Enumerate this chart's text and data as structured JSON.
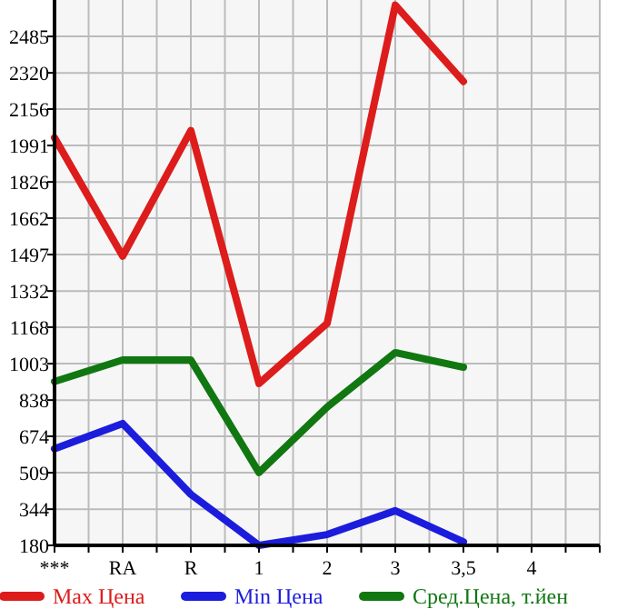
{
  "chart_data": {
    "type": "line",
    "categories": [
      "***",
      "RA",
      "R",
      "1",
      "2",
      "3",
      "3,5",
      "4"
    ],
    "series": [
      {
        "name": "Max Цена",
        "color": "#dd1c1c",
        "values": [
          2026,
          1490,
          2059,
          913,
          1185,
          2627,
          2281,
          null
        ]
      },
      {
        "name": "Min Цена",
        "color": "#1c1cdd",
        "values": [
          617,
          732,
          411,
          180,
          229,
          337,
          196,
          null
        ]
      },
      {
        "name": "Сред.Цена, т.йен",
        "color": "#117711",
        "values": [
          922,
          1020,
          1020,
          510,
          806,
          1053,
          987,
          null
        ]
      }
    ],
    "ylim": [
      180,
      2650
    ],
    "yticks": [
      180,
      344,
      509,
      674,
      838,
      1003,
      1168,
      1332,
      1497,
      1662,
      1826,
      1991,
      2156,
      2320,
      2485
    ],
    "grid": true,
    "legend": "bottom",
    "marker": "none",
    "line_style": "solid"
  }
}
